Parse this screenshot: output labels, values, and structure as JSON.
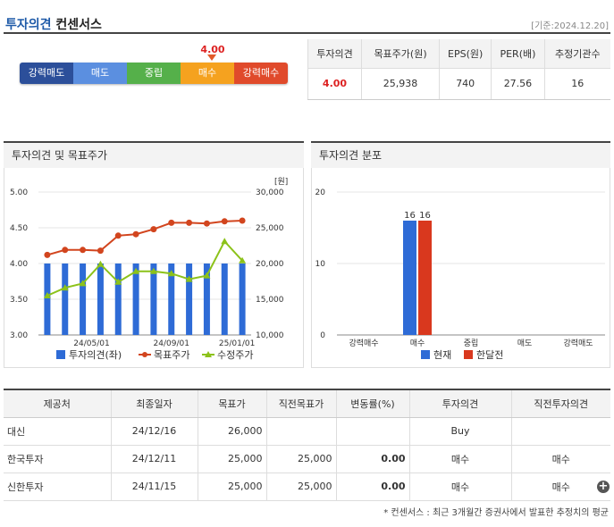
{
  "header": {
    "title_blue": "투자의견",
    "title_dark": "컨센서스",
    "date": "[기준:2024.12.20]"
  },
  "opinion": {
    "value": "4.00",
    "scale": [
      "강력매도",
      "매도",
      "중립",
      "매수",
      "강력매수"
    ]
  },
  "summary": {
    "headers": [
      "투자의견",
      "목표주가(원)",
      "EPS(원)",
      "PER(배)",
      "추정기관수"
    ],
    "values": [
      "4.00",
      "25,938",
      "740",
      "27.56",
      "16"
    ]
  },
  "panel1": {
    "title": "투자의견 및 목표주가"
  },
  "panel2": {
    "title": "투자의견 분포"
  },
  "colors": {
    "bar_blue": "#2e6bd6",
    "line_red": "#d2451e",
    "line_green": "#8cc21a",
    "dist_now": "#2e6bd6",
    "dist_prev": "#d9381e"
  },
  "chart_data": [
    {
      "type": "bar+line",
      "left_axis": {
        "ticks": [
          "5.00",
          "4.50",
          "4.00",
          "3.50",
          "3.00"
        ],
        "range": [
          3.0,
          5.0
        ]
      },
      "right_axis": {
        "unit": "[원]",
        "ticks": [
          "30,000",
          "25,000",
          "20,000",
          "15,000",
          "10,000"
        ],
        "range": [
          10000,
          30000
        ]
      },
      "x_ticks": [
        "24/05/01",
        "24/09/01",
        "25/01/01"
      ],
      "series": [
        {
          "name": "투자의견(좌)",
          "axis": "left",
          "kind": "bar",
          "values": [
            4.0,
            4.0,
            4.0,
            4.0,
            4.0,
            4.0,
            4.0,
            4.0,
            4.0,
            4.0,
            4.0,
            4.0
          ]
        },
        {
          "name": "목표주가",
          "axis": "right",
          "kind": "line",
          "values": [
            21200,
            21900,
            21900,
            21800,
            23900,
            24100,
            24800,
            25700,
            25700,
            25600,
            25900,
            26000
          ]
        },
        {
          "name": "수정주가",
          "axis": "right",
          "kind": "line",
          "values": [
            15500,
            16600,
            17200,
            19900,
            17400,
            18900,
            18900,
            18600,
            17800,
            18300,
            23100,
            20400
          ]
        }
      ]
    },
    {
      "type": "bar",
      "y_ticks": [
        "20",
        "10",
        "0"
      ],
      "ylim": [
        0,
        20
      ],
      "categories": [
        "강력매수",
        "매수",
        "중립",
        "매도",
        "강력매도"
      ],
      "series": [
        {
          "name": "현재",
          "values": [
            0,
            16,
            0,
            0,
            0
          ]
        },
        {
          "name": "한달전",
          "values": [
            0,
            16,
            0,
            0,
            0
          ]
        }
      ]
    }
  ],
  "table": {
    "headers": [
      "제공처",
      "최종일자",
      "목표가",
      "직전목표가",
      "변동률(%)",
      "투자의견",
      "직전투자의견"
    ],
    "rows": [
      [
        "대신",
        "24/12/16",
        "26,000",
        "",
        "",
        "Buy",
        ""
      ],
      [
        "한국투자",
        "24/12/11",
        "25,000",
        "25,000",
        "0.00",
        "매수",
        "매수"
      ],
      [
        "신한투자",
        "24/11/15",
        "25,000",
        "25,000",
        "0.00",
        "매수",
        "매수"
      ]
    ]
  },
  "footnote": "* 컨센서스 : 최근 3개월간 증권사에서 발표한 추정치의 평균"
}
